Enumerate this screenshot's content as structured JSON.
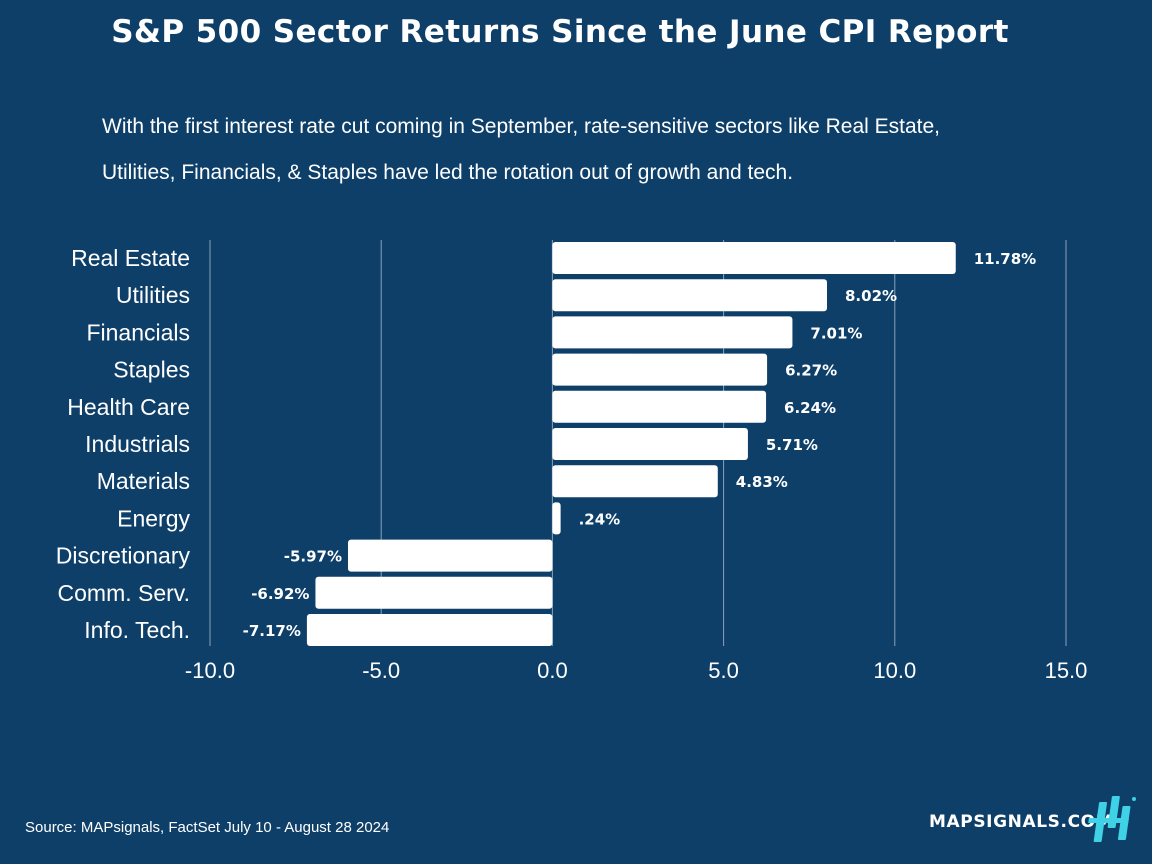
{
  "header": {
    "title": "S&P 500 Sector Returns Since the June CPI Report",
    "subtitle_line1": "With the first interest rate cut coming in September, rate-sensitive sectors like Real Estate,",
    "subtitle_line2": "Utilities, Financials, & Staples have led the rotation out of growth and tech."
  },
  "footer": {
    "source": "Source: MAPsignals, FactSet July 10 - August 28 2024",
    "brand": "MAPSIGNALS.COM"
  },
  "colors": {
    "background": "#0e3f69",
    "bar": "#ffffff",
    "grid": "#8aa2b8",
    "text": "#ffffff",
    "logo": "#3fd1e6"
  },
  "chart_data": {
    "type": "bar",
    "orientation": "horizontal",
    "title": "S&P 500 Sector Returns Since the June CPI Report",
    "xlabel": "",
    "ylabel": "",
    "xlim": [
      -10,
      15
    ],
    "xticks": [
      -10,
      -5,
      0,
      5,
      10,
      15
    ],
    "xtick_labels": [
      "-10.0",
      "-5.0",
      "0.0",
      "5.0",
      "10.0",
      "15.0"
    ],
    "grid": "vertical",
    "categories": [
      "Real Estate",
      "Utilities",
      "Financials",
      "Staples",
      "Health Care",
      "Industrials",
      "Materials",
      "Energy",
      "Discretionary",
      "Comm. Serv.",
      "Info. Tech."
    ],
    "values": [
      11.78,
      8.02,
      7.01,
      6.27,
      6.24,
      5.71,
      4.83,
      0.24,
      -5.97,
      -6.92,
      -7.17
    ],
    "data_labels": [
      "11.78%",
      "8.02%",
      "7.01%",
      "6.27%",
      "6.24%",
      "5.71%",
      "4.83%",
      ".24%",
      "-5.97%",
      "-6.92%",
      "-7.17%"
    ]
  }
}
